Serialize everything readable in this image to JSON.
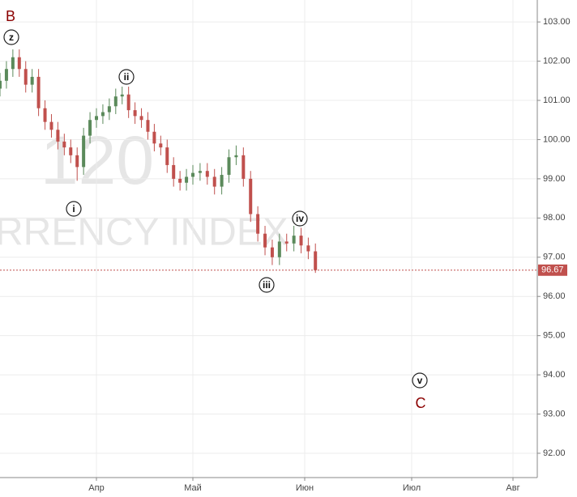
{
  "chart_data": {
    "type": "candlestick",
    "watermark": [
      "120",
      "RRENCY INDEX"
    ],
    "annotations": [
      "B",
      "z",
      "ii",
      "i",
      "iv",
      "iii",
      "v",
      "C"
    ],
    "x": [
      61,
      63,
      65,
      67,
      69,
      71,
      73,
      75,
      77,
      79,
      81,
      83,
      85,
      87,
      89,
      91,
      93,
      95,
      97,
      99,
      101,
      103,
      105,
      107,
      109,
      111,
      113,
      115,
      117,
      119,
      121,
      123,
      125,
      127,
      129,
      131,
      133,
      135,
      137,
      139,
      141,
      143,
      145,
      147,
      149,
      151,
      153,
      155
    ],
    "open": [
      101.3,
      101.5,
      101.8,
      102.1,
      101.8,
      101.4,
      101.6,
      100.8,
      100.45,
      100.25,
      99.95,
      99.8,
      99.6,
      99.3,
      100.1,
      100.5,
      100.6,
      100.7,
      100.85,
      101.1,
      101.15,
      100.75,
      100.6,
      100.5,
      100.2,
      99.9,
      99.8,
      99.35,
      99.0,
      98.9,
      99.05,
      99.15,
      99.2,
      99.05,
      98.8,
      99.1,
      99.55,
      99.6,
      99.0,
      98.1,
      97.6,
      97.25,
      97.0,
      97.4,
      97.35,
      97.55,
      97.3,
      97.15
    ],
    "high": [
      101.7,
      102.0,
      102.3,
      102.3,
      102.0,
      101.8,
      101.8,
      101.0,
      100.65,
      100.45,
      100.15,
      100.0,
      99.8,
      100.3,
      100.7,
      100.8,
      100.9,
      101.05,
      101.3,
      101.35,
      101.35,
      100.95,
      100.8,
      100.7,
      100.4,
      100.1,
      100.0,
      99.55,
      99.2,
      99.25,
      99.35,
      99.4,
      99.4,
      99.25,
      99.3,
      99.75,
      99.85,
      99.8,
      99.2,
      98.3,
      97.8,
      97.45,
      97.6,
      97.6,
      97.8,
      97.75,
      97.5,
      97.35
    ],
    "low": [
      101.1,
      101.3,
      101.6,
      101.6,
      101.2,
      101.2,
      100.6,
      100.25,
      100.05,
      99.75,
      99.6,
      99.4,
      98.95,
      99.1,
      99.9,
      100.3,
      100.4,
      100.5,
      100.65,
      100.9,
      100.55,
      100.4,
      100.3,
      100.0,
      99.7,
      99.6,
      99.15,
      98.8,
      98.7,
      98.7,
      98.85,
      98.95,
      98.85,
      98.6,
      98.6,
      98.9,
      99.35,
      98.8,
      97.9,
      97.4,
      97.05,
      96.8,
      96.8,
      97.15,
      97.15,
      97.1,
      96.95,
      96.6
    ],
    "close": [
      101.5,
      101.8,
      102.1,
      101.8,
      101.4,
      101.6,
      100.8,
      100.45,
      100.25,
      99.95,
      99.8,
      99.6,
      99.3,
      100.1,
      100.5,
      100.6,
      100.7,
      100.85,
      101.1,
      101.15,
      100.75,
      100.6,
      100.5,
      100.2,
      99.9,
      99.8,
      99.35,
      99.0,
      98.9,
      99.05,
      99.15,
      99.2,
      99.05,
      98.8,
      99.1,
      99.55,
      99.6,
      99.0,
      98.1,
      97.6,
      97.25,
      97.0,
      97.4,
      97.35,
      97.55,
      97.3,
      97.15,
      96.67
    ],
    "up_color": "#5b8a5b",
    "down_color": "#c0504d",
    "last_price": 96.67,
    "last_price_color": "#c0504d",
    "xlim": [
      61,
      220
    ],
    "xticks": [
      {
        "value": 91,
        "label": "Апр"
      },
      {
        "value": 121,
        "label": "Май"
      },
      {
        "value": 152,
        "label": "Июн"
      },
      {
        "value": 182,
        "label": "Июл"
      },
      {
        "value": 213,
        "label": "Авг"
      }
    ],
    "ylim": [
      91.38,
      103.56
    ],
    "yticks": [
      {
        "value": 92,
        "label": "92.00"
      },
      {
        "value": 93,
        "label": "93.00"
      },
      {
        "value": 94,
        "label": "94.00"
      },
      {
        "value": 95,
        "label": "95.00"
      },
      {
        "value": 96,
        "label": "96.00"
      },
      {
        "value": 97,
        "label": "97.00"
      },
      {
        "value": 98,
        "label": "98.00"
      },
      {
        "value": 99,
        "label": "99.00"
      },
      {
        "value": 100,
        "label": "100.00"
      },
      {
        "value": 101,
        "label": "101.00"
      },
      {
        "value": 102,
        "label": "102.00"
      },
      {
        "value": 103,
        "label": "103.00"
      }
    ],
    "grid": true
  }
}
